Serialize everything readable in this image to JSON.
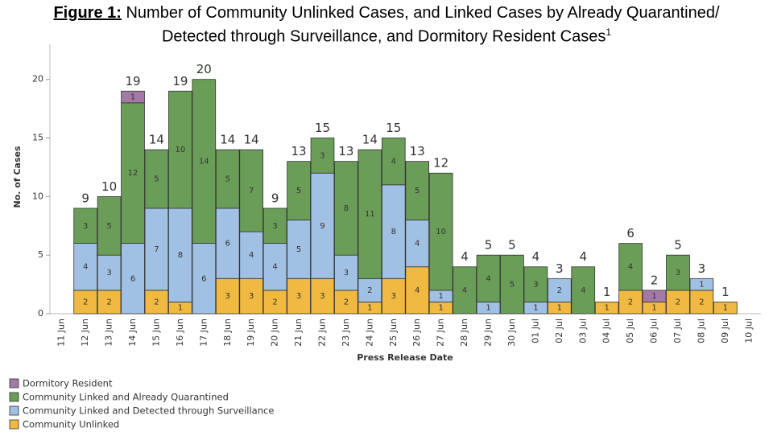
{
  "chart_data": {
    "type": "stacked-bar",
    "title_label": "Figure 1:",
    "title": "Number of Community Unlinked Cases, and Linked Cases by Already Quarantined/ Detected through Surveillance, and Dormitory Resident Cases",
    "title_footnote": "1",
    "x_label": "Press Release Date",
    "y_label": "No. of Cases",
    "categories": [
      "11 Jun",
      "12 Jun",
      "13 Jun",
      "14 Jun",
      "15 Jun",
      "16 Jun",
      "17 Jun",
      "18 Jun",
      "19 Jun",
      "20 Jun",
      "21 Jun",
      "22 Jun",
      "23 Jun",
      "24 Jun",
      "25 Jun",
      "26 Jun",
      "27 Jun",
      "28 Jun",
      "29 Jun",
      "30 Jun",
      "01 Jul",
      "02 Jul",
      "03 Jul",
      "04 Jul",
      "05 Jul",
      "06 Jul",
      "07 Jul",
      "08 Jul",
      "09 Jul",
      "10 Jul"
    ],
    "series": [
      {
        "name": "Community Unlinked",
        "color": "#f0b941",
        "values": [
          null,
          2,
          2,
          null,
          2,
          1,
          null,
          3,
          3,
          2,
          3,
          3,
          2,
          1,
          3,
          4,
          1,
          null,
          null,
          null,
          null,
          1,
          null,
          1,
          2,
          1,
          2,
          2,
          1,
          null
        ]
      },
      {
        "name": "Community Linked and Detected through Surveillance",
        "color": "#a0c0e4",
        "values": [
          null,
          4,
          3,
          6,
          7,
          8,
          6,
          6,
          4,
          4,
          5,
          9,
          3,
          2,
          8,
          4,
          1,
          null,
          1,
          null,
          1,
          2,
          null,
          null,
          null,
          null,
          null,
          1,
          null,
          null
        ]
      },
      {
        "name": "Community Linked and Already Quarantined",
        "color": "#6a9e58",
        "values": [
          null,
          3,
          5,
          12,
          5,
          10,
          14,
          5,
          7,
          3,
          5,
          3,
          8,
          11,
          4,
          5,
          10,
          4,
          4,
          5,
          3,
          null,
          4,
          null,
          4,
          null,
          3,
          null,
          null,
          null
        ]
      },
      {
        "name": "Dormitory Resident",
        "color": "#a37aa6",
        "values": [
          null,
          null,
          null,
          1,
          null,
          null,
          null,
          null,
          null,
          null,
          null,
          null,
          null,
          null,
          null,
          null,
          null,
          null,
          null,
          null,
          null,
          null,
          null,
          null,
          null,
          1,
          null,
          null,
          null,
          null
        ]
      }
    ],
    "totals": [
      null,
      9,
      10,
      19,
      14,
      19,
      20,
      14,
      14,
      9,
      13,
      15,
      13,
      14,
      15,
      13,
      12,
      4,
      5,
      5,
      4,
      3,
      4,
      1,
      6,
      2,
      5,
      3,
      1,
      null
    ],
    "ylim": [
      0,
      23
    ],
    "yticks": [
      0,
      5,
      10,
      15,
      20
    ],
    "legend_order": [
      3,
      2,
      1,
      0
    ]
  }
}
